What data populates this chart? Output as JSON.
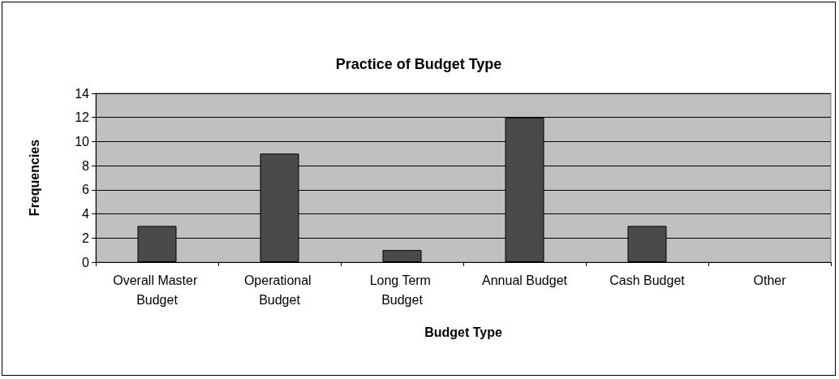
{
  "chart_data": {
    "type": "bar",
    "title": "Practice of Budget Type",
    "xlabel": "Budget Type",
    "ylabel": "Frequencies",
    "categories": [
      "Overall Master Budget",
      "Operational Budget",
      "Long Term Budget",
      "Annual Budget",
      "Cash Budget",
      "Other"
    ],
    "values": [
      3,
      9,
      1,
      12,
      3,
      0
    ],
    "color": "#4a4a4a",
    "ylim": [
      0,
      14
    ],
    "yticks": [
      0,
      2,
      4,
      6,
      8,
      10,
      12,
      14
    ],
    "grid": "y"
  }
}
